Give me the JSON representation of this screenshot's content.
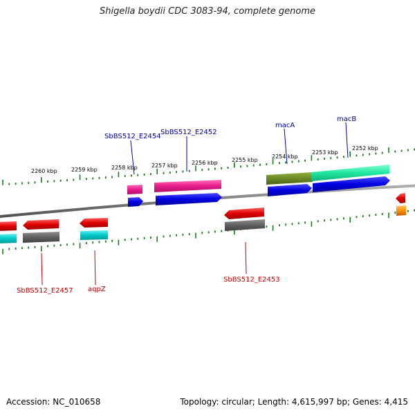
{
  "title": "Shigella boydii CDC 3083-94, complete genome",
  "footer": {
    "accession": "Accession: NC_010658",
    "summary": "Topology: circular; Length: 4,615,997 bp; Genes: 4,415"
  },
  "ticks": [
    "2260 kbp",
    "2259 kbp",
    "2258 kbp",
    "2257 kbp",
    "2256 kbp",
    "2255 kbp",
    "2254 kbp",
    "2253 kbp",
    "2252 kbp"
  ],
  "top_labels": [
    "SbBS512_E2454",
    "SbBS512_E2452",
    "macA",
    "macB"
  ],
  "bottom_labels": [
    "SbBS512_E2457",
    "aqpZ",
    "SbBS512_E2453"
  ],
  "colors": {
    "label_blue": "#00009c",
    "label_red": "#c00000",
    "tick_green": "#1a7a1a",
    "backbone": "#808080",
    "cds_blue": "#0000e0",
    "gene_red": "#e00000",
    "gene_gray": "#606060",
    "rna_cyan": "#00c8c8",
    "magenta": "#e81c8c",
    "olive": "#6b8a24",
    "mint": "#20e8a0",
    "orange": "#ff9000"
  }
}
